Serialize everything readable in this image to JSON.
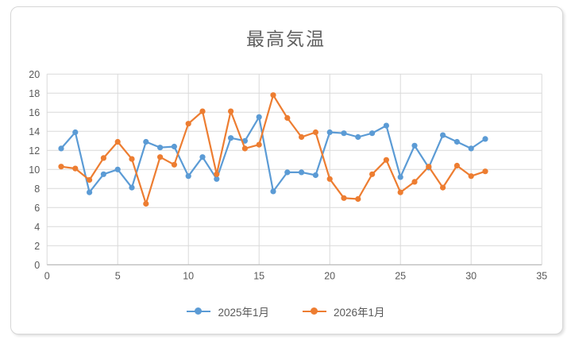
{
  "chart_data": {
    "type": "line",
    "title": "最高気温",
    "x": [
      1,
      2,
      3,
      4,
      5,
      6,
      7,
      8,
      9,
      10,
      11,
      12,
      13,
      14,
      15,
      16,
      17,
      18,
      19,
      20,
      21,
      22,
      23,
      24,
      25,
      26,
      27,
      28,
      29,
      30,
      31
    ],
    "series": [
      {
        "name": "2025年1月",
        "color": "#5B9BD5",
        "values": [
          12.2,
          13.9,
          7.6,
          9.5,
          10.0,
          8.1,
          12.9,
          12.3,
          12.4,
          9.3,
          11.3,
          9.0,
          13.3,
          13.0,
          15.5,
          7.7,
          9.7,
          9.7,
          9.4,
          13.9,
          13.8,
          13.4,
          13.8,
          14.6,
          9.2,
          12.5,
          10.2,
          13.6,
          12.9,
          12.2,
          13.2
        ]
      },
      {
        "name": "2026年1月",
        "color": "#ED7D31",
        "values": [
          10.3,
          10.1,
          8.9,
          11.2,
          12.9,
          11.1,
          6.4,
          11.3,
          10.5,
          14.8,
          16.1,
          9.5,
          16.1,
          12.2,
          12.6,
          17.8,
          15.4,
          13.4,
          13.9,
          9.0,
          7.0,
          6.9,
          9.5,
          11.0,
          7.6,
          8.7,
          10.3,
          8.1,
          10.4,
          9.3,
          9.8
        ]
      }
    ],
    "xlabel": "",
    "ylabel": "",
    "xlim": [
      0,
      35
    ],
    "ylim": [
      0,
      20
    ],
    "x_ticks": [
      0,
      5,
      10,
      15,
      20,
      25,
      30,
      35
    ],
    "y_ticks": [
      0,
      2,
      4,
      6,
      8,
      10,
      12,
      14,
      16,
      18,
      20
    ],
    "grid": true,
    "legend_position": "bottom",
    "colors": {
      "gridline": "#d9d9d9",
      "axis_line": "#bfbfbf",
      "tick_label": "#595959",
      "title": "#5f5f5f",
      "frame_border": "#d6d6d6"
    }
  }
}
